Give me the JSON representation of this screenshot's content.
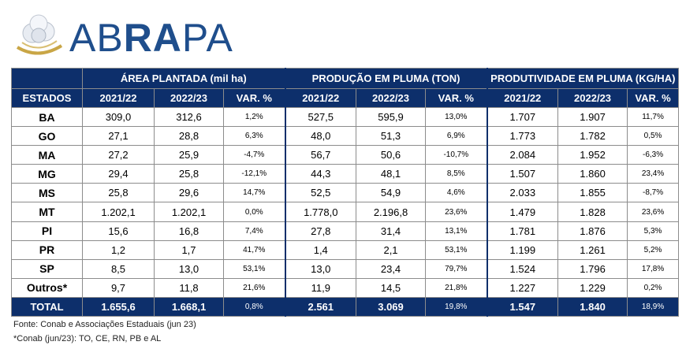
{
  "brand": {
    "name_part1": "AB",
    "name_part2": "RA",
    "name_part3": "PA"
  },
  "groups": [
    "ÁREA PLANTADA (mil ha)",
    "PRODUÇÃO EM PLUMA (TON)",
    "PRODUTIVIDADE EM PLUMA (KG/HA)"
  ],
  "columns": [
    "ESTADOS",
    "2021/22",
    "2022/23",
    "VAR. %",
    "2021/22",
    "2022/23",
    "VAR. %",
    "2021/22",
    "2022/23",
    "VAR. %"
  ],
  "rows": [
    [
      "BA",
      "309,0",
      "312,6",
      "1,2%",
      "527,5",
      "595,9",
      "13,0%",
      "1.707",
      "1.907",
      "11,7%"
    ],
    [
      "GO",
      "27,1",
      "28,8",
      "6,3%",
      "48,0",
      "51,3",
      "6,9%",
      "1.773",
      "1.782",
      "0,5%"
    ],
    [
      "MA",
      "27,2",
      "25,9",
      "-4,7%",
      "56,7",
      "50,6",
      "-10,7%",
      "2.084",
      "1.952",
      "-6,3%"
    ],
    [
      "MG",
      "29,4",
      "25,8",
      "-12,1%",
      "44,3",
      "48,1",
      "8,5%",
      "1.507",
      "1.860",
      "23,4%"
    ],
    [
      "MS",
      "25,8",
      "29,6",
      "14,7%",
      "52,5",
      "54,9",
      "4,6%",
      "2.033",
      "1.855",
      "-8,7%"
    ],
    [
      "MT",
      "1.202,1",
      "1.202,1",
      "0,0%",
      "1.778,0",
      "2.196,8",
      "23,6%",
      "1.479",
      "1.828",
      "23,6%"
    ],
    [
      "PI",
      "15,6",
      "16,8",
      "7,4%",
      "27,8",
      "31,4",
      "13,1%",
      "1.781",
      "1.876",
      "5,3%"
    ],
    [
      "PR",
      "1,2",
      "1,7",
      "41,7%",
      "1,4",
      "2,1",
      "53,1%",
      "1.199",
      "1.261",
      "5,2%"
    ],
    [
      "SP",
      "8,5",
      "13,0",
      "53,1%",
      "13,0",
      "23,4",
      "79,7%",
      "1.524",
      "1.796",
      "17,8%"
    ],
    [
      "Outros*",
      "9,7",
      "11,8",
      "21,6%",
      "11,9",
      "14,5",
      "21,8%",
      "1.227",
      "1.229",
      "0,2%"
    ]
  ],
  "total": [
    "TOTAL",
    "1.655,6",
    "1.668,1",
    "0,8%",
    "2.561",
    "3.069",
    "19,8%",
    "1.547",
    "1.840",
    "18,9%"
  ],
  "footnotes": [
    "Fonte: Conab e Associações Estaduais (jun 23)",
    "*Conab (jun/23): TO, CE, RN, PB e AL"
  ],
  "colors": {
    "header_bg": "#0d2f6b",
    "brand_blue": "#1f4e8c",
    "logo_gold": "#c9a646"
  }
}
